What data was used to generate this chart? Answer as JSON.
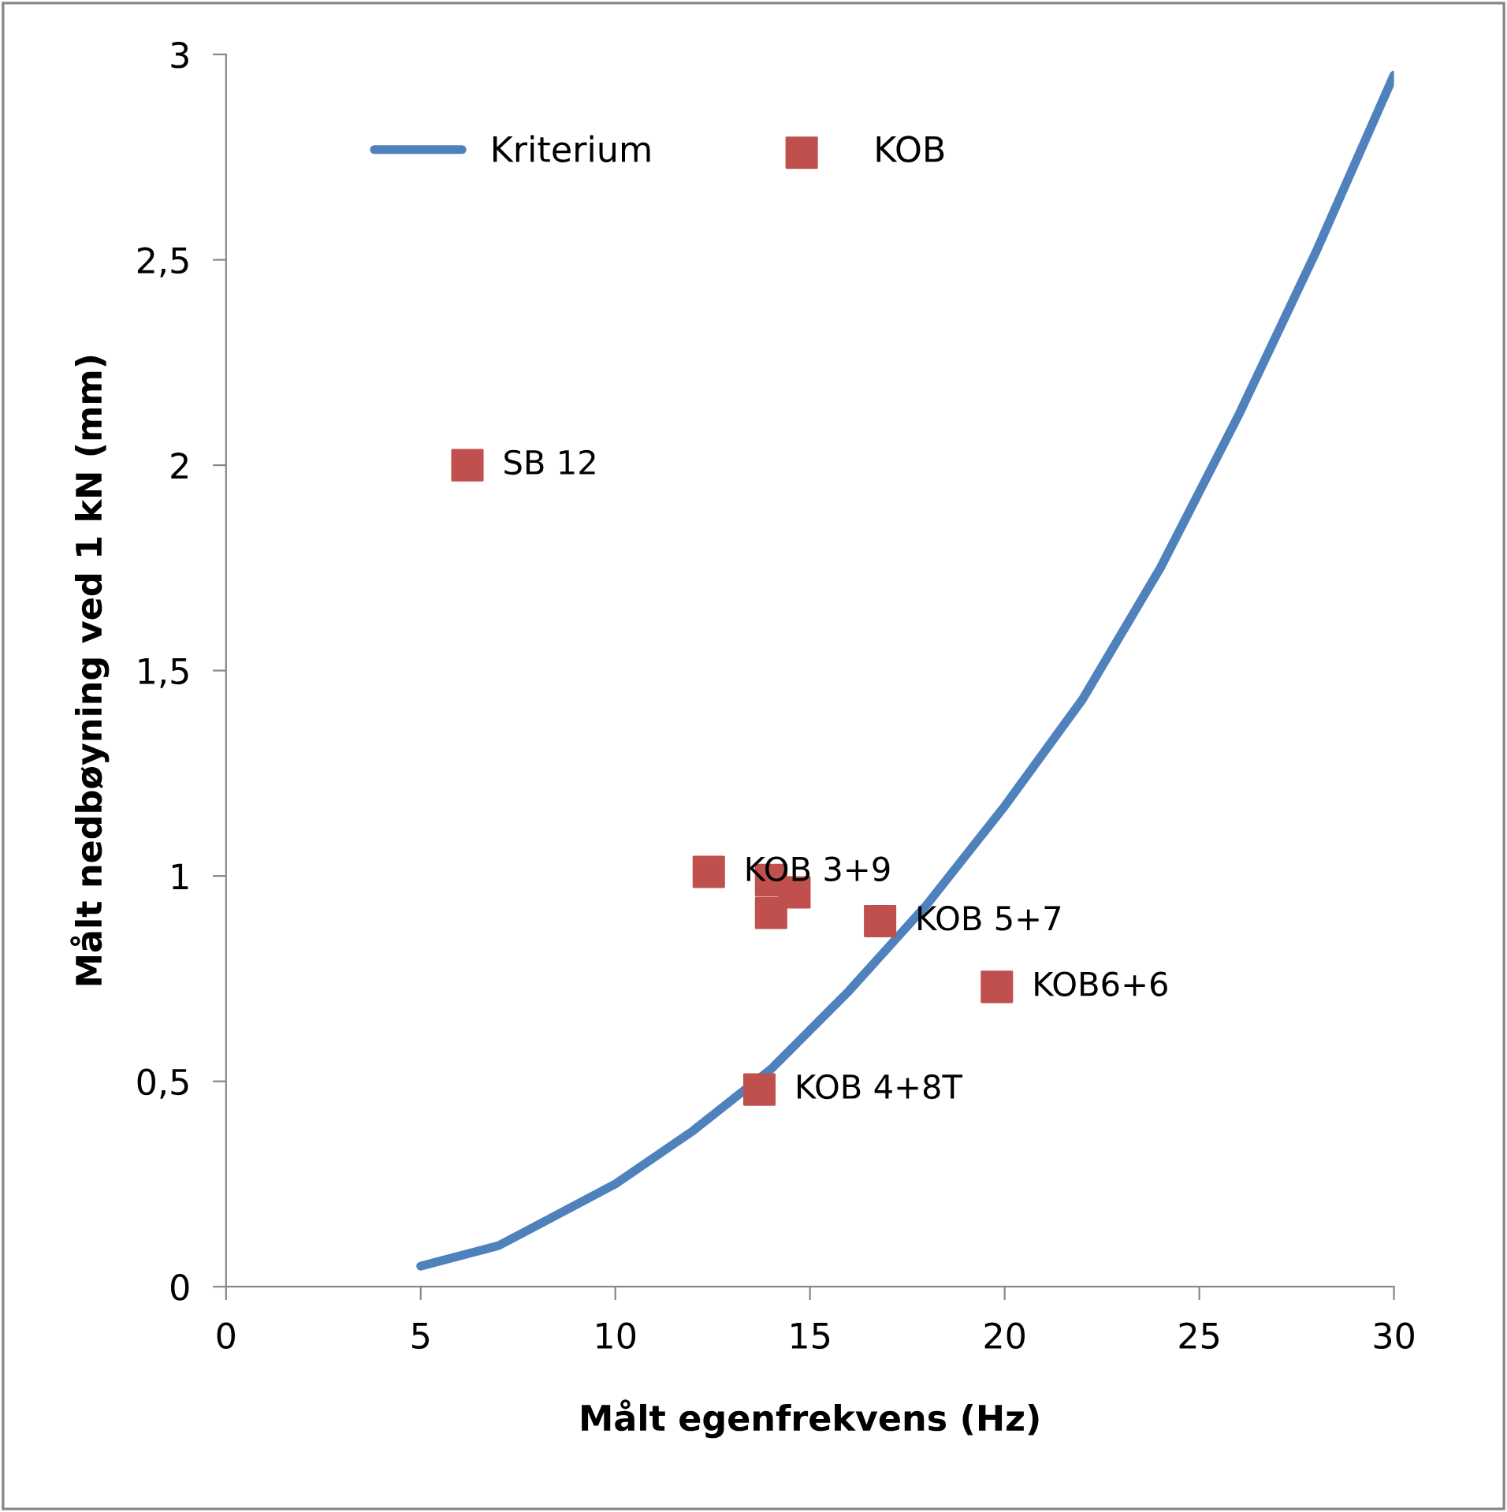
{
  "chart_data": {
    "type": "scatter",
    "xlabel": "Målt egenfrekvens (Hz)",
    "ylabel": "Målt nedbøyning ved 1 kN (mm)",
    "xlim": [
      0,
      30
    ],
    "xticks": [
      0,
      5,
      10,
      15,
      20,
      25,
      30
    ],
    "ylim": [
      0,
      3
    ],
    "yticks": [
      0,
      {
        "value": 0.5,
        "label": "0,5"
      },
      1,
      {
        "value": 1.5,
        "label": "1,5"
      },
      2,
      {
        "value": 2.5,
        "label": "2,5"
      },
      3
    ],
    "grid": false,
    "legend": "top left",
    "series": [
      {
        "name": "Kriterium",
        "type": "line",
        "marker": "none",
        "color": "#4f81bd",
        "x": [
          5,
          7,
          8,
          10,
          12,
          14,
          16,
          18,
          20,
          22,
          24,
          26,
          28,
          30
        ],
        "values": [
          0.05,
          0.1,
          0.15,
          0.25,
          0.38,
          0.53,
          0.72,
          0.93,
          1.17,
          1.43,
          1.75,
          2.12,
          2.52,
          2.95
        ]
      },
      {
        "name": "KOB",
        "marker": "square",
        "color": "#c0504d",
        "x": [
          6.2,
          12.4,
          14.0,
          14.6,
          14.0,
          16.8,
          19.8,
          13.7
        ],
        "values": [
          2.0,
          1.01,
          0.99,
          0.96,
          0.91,
          0.89,
          0.73,
          0.48
        ]
      }
    ],
    "annotations": [
      {
        "text": "SB 12",
        "x": 6.2,
        "y": 2.0
      },
      {
        "text": "KOB 3+9",
        "x": 12.4,
        "y": 1.01
      },
      {
        "text": "KOB 5+7",
        "x": 16.8,
        "y": 0.89
      },
      {
        "text": "KOB6+6",
        "x": 19.8,
        "y": 0.73
      },
      {
        "text": "KOB 4+8T",
        "x": 13.7,
        "y": 0.48
      }
    ]
  }
}
